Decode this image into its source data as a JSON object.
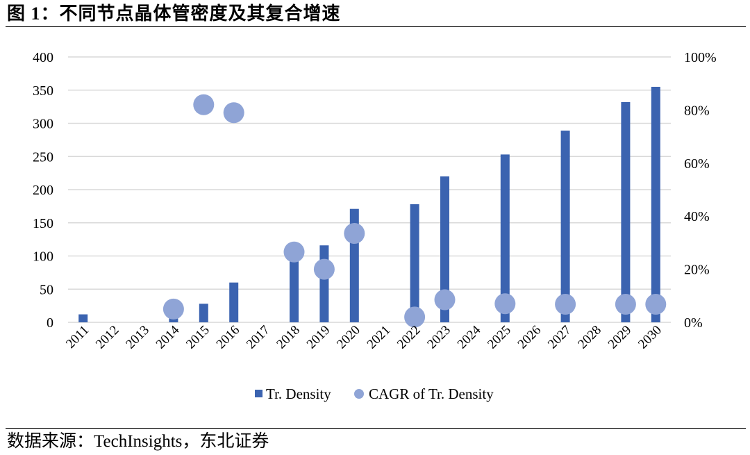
{
  "figure": {
    "title": "图 1：不同节点晶体管密度及其复合增速",
    "source": "数据来源：TechInsights，东北证券"
  },
  "colors": {
    "bar": "#3b63b0",
    "dot": "#8fa4d6",
    "grid": "#d9d9d9"
  },
  "chart_data": {
    "type": "bar",
    "title": "",
    "xlabel": "",
    "ylabel": "",
    "y2label": "",
    "categories": [
      "2011",
      "2012",
      "2013",
      "2014",
      "2015",
      "2016",
      "2017",
      "2018",
      "2019",
      "2020",
      "2021",
      "2022",
      "2023",
      "2024",
      "2025",
      "2026",
      "2027",
      "2028",
      "2029",
      "2030"
    ],
    "ylim": [
      0,
      400
    ],
    "yticks": [
      0,
      50,
      100,
      150,
      200,
      250,
      300,
      350,
      400
    ],
    "y2lim": [
      0,
      1
    ],
    "y2ticks": [
      "0%",
      "20%",
      "40%",
      "60%",
      "80%",
      "100%"
    ],
    "grid": true,
    "legend_position": "bottom",
    "series": [
      {
        "name": "Tr. Density",
        "type": "bar",
        "axis": "left",
        "values": [
          12,
          null,
          null,
          10,
          28,
          60,
          null,
          100,
          116,
          171,
          null,
          178,
          220,
          null,
          253,
          null,
          289,
          null,
          332,
          355
        ]
      },
      {
        "name": "CAGR of Tr. Density",
        "type": "scatter",
        "axis": "right",
        "values": [
          null,
          null,
          null,
          0.05,
          0.82,
          0.79,
          null,
          0.265,
          0.2,
          0.335,
          null,
          0.02,
          0.085,
          null,
          0.07,
          null,
          0.068,
          null,
          0.068,
          0.068
        ]
      }
    ]
  }
}
